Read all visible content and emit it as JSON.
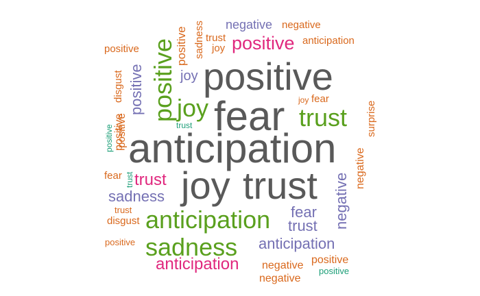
{
  "colors": {
    "gray": "#595959",
    "green": "#5aa01e",
    "purple": "#7470b3",
    "pink": "#e0287e",
    "orange": "#d9681c",
    "teal": "#1b9e77"
  },
  "words": [
    {
      "text": "positive",
      "color": "gray",
      "vertical": false
    },
    {
      "text": "fear",
      "color": "gray",
      "vertical": false
    },
    {
      "text": "anticipation",
      "color": "gray",
      "vertical": false
    },
    {
      "text": "joy",
      "color": "gray",
      "vertical": false
    },
    {
      "text": "trust",
      "color": "gray",
      "vertical": false
    },
    {
      "text": "positive",
      "color": "green",
      "vertical": true
    },
    {
      "text": "joy",
      "color": "green",
      "vertical": false
    },
    {
      "text": "trust",
      "color": "green",
      "vertical": false
    },
    {
      "text": "anticipation",
      "color": "green",
      "vertical": false
    },
    {
      "text": "sadness",
      "color": "green",
      "vertical": false
    },
    {
      "text": "positive",
      "color": "pink",
      "vertical": false
    },
    {
      "text": "trust",
      "color": "pink",
      "vertical": false
    },
    {
      "text": "anticipation",
      "color": "pink",
      "vertical": false
    },
    {
      "text": "negative",
      "color": "purple",
      "vertical": false
    },
    {
      "text": "positive",
      "color": "purple",
      "vertical": true
    },
    {
      "text": "joy",
      "color": "purple",
      "vertical": false
    },
    {
      "text": "sadness",
      "color": "purple",
      "vertical": false
    },
    {
      "text": "fear",
      "color": "purple",
      "vertical": false
    },
    {
      "text": "trust",
      "color": "purple",
      "vertical": false
    },
    {
      "text": "negative",
      "color": "purple",
      "vertical": true
    },
    {
      "text": "anticipation",
      "color": "purple",
      "vertical": false
    },
    {
      "text": "negative",
      "color": "orange",
      "vertical": false
    },
    {
      "text": "anticipation",
      "color": "orange",
      "vertical": false
    },
    {
      "text": "positive",
      "color": "orange",
      "vertical": false
    },
    {
      "text": "positive",
      "color": "orange",
      "vertical": true
    },
    {
      "text": "positive",
      "color": "orange",
      "vertical": true
    },
    {
      "text": "sadness",
      "color": "orange",
      "vertical": true
    },
    {
      "text": "trust",
      "color": "orange",
      "vertical": false
    },
    {
      "text": "joy",
      "color": "orange",
      "vertical": false
    },
    {
      "text": "disgust",
      "color": "orange",
      "vertical": true
    },
    {
      "text": "positive",
      "color": "orange",
      "vertical": true
    },
    {
      "text": "joy",
      "color": "orange",
      "vertical": false
    },
    {
      "text": "fear",
      "color": "orange",
      "vertical": false
    },
    {
      "text": "surprise",
      "color": "orange",
      "vertical": true
    },
    {
      "text": "negative",
      "color": "orange",
      "vertical": true
    },
    {
      "text": "fear",
      "color": "orange",
      "vertical": false
    },
    {
      "text": "trust",
      "color": "orange",
      "vertical": false
    },
    {
      "text": "disgust",
      "color": "orange",
      "vertical": false
    },
    {
      "text": "positive",
      "color": "orange",
      "vertical": false
    },
    {
      "text": "negative",
      "color": "orange",
      "vertical": false
    },
    {
      "text": "positive",
      "color": "orange",
      "vertical": false
    },
    {
      "text": "negative",
      "color": "orange",
      "vertical": false
    },
    {
      "text": "positive",
      "color": "teal",
      "vertical": true
    },
    {
      "text": "trust",
      "color": "teal",
      "vertical": false
    },
    {
      "text": "trust",
      "color": "teal",
      "vertical": true
    },
    {
      "text": "positive",
      "color": "teal",
      "vertical": false
    }
  ]
}
